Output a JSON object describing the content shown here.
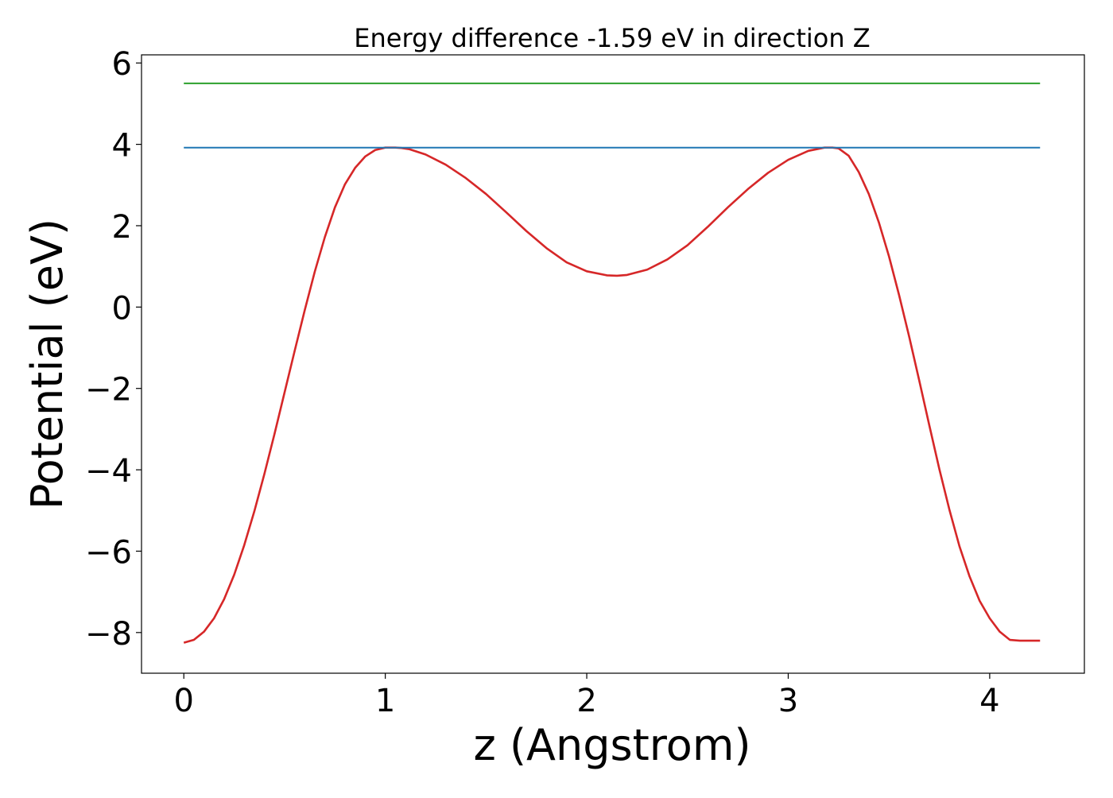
{
  "chart_data": {
    "type": "line",
    "title": "Energy difference -1.59 eV in direction Z",
    "xlabel": "z (Angstrom)",
    "ylabel": "Potential (eV)",
    "xlim": [
      -0.21,
      4.47
    ],
    "ylim": [
      -9.0,
      6.2
    ],
    "xticks": [
      0,
      1,
      2,
      3,
      4
    ],
    "xtick_labels": [
      "0",
      "1",
      "2",
      "3",
      "4"
    ],
    "yticks": [
      -8,
      -6,
      -4,
      -2,
      0,
      2,
      4,
      6
    ],
    "ytick_labels": [
      "−8",
      "−6",
      "−4",
      "−2",
      "0",
      "2",
      "4",
      "6"
    ],
    "grid": false,
    "series": [
      {
        "color": "#d62728",
        "x": [
          0,
          0.05,
          0.1,
          0.15,
          0.2,
          0.25,
          0.3,
          0.35,
          0.4,
          0.45,
          0.5,
          0.55,
          0.6,
          0.65,
          0.7,
          0.75,
          0.8,
          0.85,
          0.9,
          0.95,
          1.0,
          1.05,
          1.08,
          1.12,
          1.2,
          1.3,
          1.4,
          1.5,
          1.6,
          1.7,
          1.8,
          1.9,
          2.0,
          2.1,
          2.15,
          2.2,
          2.3,
          2.4,
          2.5,
          2.6,
          2.7,
          2.8,
          2.9,
          3.0,
          3.1,
          3.18,
          3.22,
          3.25,
          3.3,
          3.35,
          3.4,
          3.45,
          3.5,
          3.55,
          3.6,
          3.65,
          3.7,
          3.75,
          3.8,
          3.85,
          3.9,
          3.95,
          4.0,
          4.05,
          4.1,
          4.15,
          4.2,
          4.25
        ],
        "y": [
          -8.25,
          -8.18,
          -7.98,
          -7.65,
          -7.18,
          -6.58,
          -5.85,
          -5.02,
          -4.1,
          -3.12,
          -2.1,
          -1.08,
          -0.08,
          0.87,
          1.72,
          2.45,
          3.02,
          3.42,
          3.7,
          3.86,
          3.92,
          3.92,
          3.91,
          3.88,
          3.75,
          3.5,
          3.17,
          2.78,
          2.33,
          1.87,
          1.45,
          1.1,
          0.88,
          0.78,
          0.77,
          0.79,
          0.92,
          1.17,
          1.52,
          1.97,
          2.45,
          2.9,
          3.3,
          3.62,
          3.84,
          3.92,
          3.92,
          3.9,
          3.72,
          3.32,
          2.78,
          2.08,
          1.25,
          0.3,
          -0.72,
          -1.8,
          -2.9,
          -3.98,
          -4.98,
          -5.88,
          -6.62,
          -7.22,
          -7.65,
          -7.98,
          -8.18,
          -8.2,
          -8.2,
          -8.2
        ]
      },
      {
        "color": "#1f77b4",
        "x": [
          0,
          4.25
        ],
        "y": [
          3.92,
          3.92
        ]
      },
      {
        "color": "#2ca02c",
        "x": [
          0,
          4.25
        ],
        "y": [
          5.5,
          5.5
        ]
      }
    ]
  }
}
